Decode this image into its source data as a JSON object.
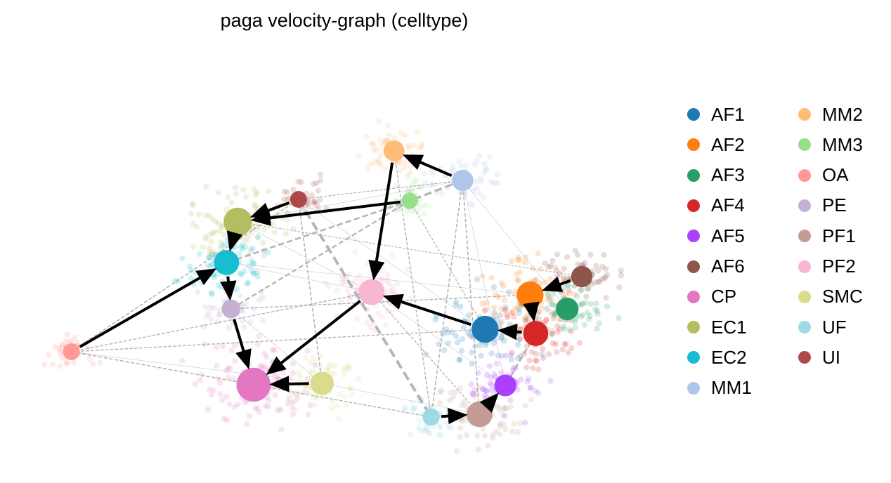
{
  "chart_data": {
    "type": "scatter",
    "title": "paga velocity-graph (celltype)",
    "xlabel": "",
    "ylabel": "",
    "axes_visible": false,
    "grid": false,
    "legend_placement": "right",
    "legend_columns": 2,
    "categories": [
      "AF1",
      "AF2",
      "AF3",
      "AF4",
      "AF5",
      "AF6",
      "CP",
      "EC1",
      "EC2",
      "MM1",
      "MM2",
      "MM3",
      "OA",
      "PE",
      "PF1",
      "PF2",
      "SMC",
      "UF",
      "UI"
    ],
    "colors": {
      "AF1": "#1f77b4",
      "AF2": "#ff7f0e",
      "AF3": "#279e68",
      "AF4": "#d62728",
      "AF5": "#aa40fc",
      "AF6": "#8c564b",
      "CP": "#e377c2",
      "EC1": "#b5bd61",
      "EC2": "#17becf",
      "MM1": "#aec7e8",
      "MM2": "#ffbb78",
      "MM3": "#98df8a",
      "OA": "#ff9896",
      "PE": "#c5b0d5",
      "PF1": "#c49c94",
      "PF2": "#f7b6d2",
      "SMC": "#dbdb8d",
      "UF": "#9edae5",
      "UI": "#ad494a"
    },
    "nodes": [
      {
        "id": "AF1",
        "x": 0.576,
        "y": -0.356,
        "weight": 0.62
      },
      {
        "id": "AF2",
        "x": 0.736,
        "y": -0.16,
        "weight": 0.62
      },
      {
        "id": "AF3",
        "x": 0.868,
        "y": -0.24,
        "weight": 0.45
      },
      {
        "id": "AF4",
        "x": 0.756,
        "y": -0.38,
        "weight": 0.55
      },
      {
        "id": "AF5",
        "x": 0.648,
        "y": -0.676,
        "weight": 0.42
      },
      {
        "id": "AF6",
        "x": 0.92,
        "y": -0.056,
        "weight": 0.4
      },
      {
        "id": "CP",
        "x": -0.248,
        "y": -0.672,
        "weight": 0.9
      },
      {
        "id": "EC1",
        "x": -0.304,
        "y": 0.256,
        "weight": 0.68
      },
      {
        "id": "EC2",
        "x": -0.344,
        "y": 0.024,
        "weight": 0.55
      },
      {
        "id": "MM1",
        "x": 0.496,
        "y": 0.492,
        "weight": 0.4
      },
      {
        "id": "MM2",
        "x": 0.252,
        "y": 0.66,
        "weight": 0.38
      },
      {
        "id": "MM3",
        "x": 0.308,
        "y": 0.376,
        "weight": 0.2
      },
      {
        "id": "OA",
        "x": -0.896,
        "y": -0.484,
        "weight": 0.22
      },
      {
        "id": "PE",
        "x": -0.328,
        "y": -0.24,
        "weight": 0.3
      },
      {
        "id": "PF1",
        "x": 0.556,
        "y": -0.84,
        "weight": 0.58
      },
      {
        "id": "PF2",
        "x": 0.172,
        "y": -0.144,
        "weight": 0.58
      },
      {
        "id": "SMC",
        "x": -0.004,
        "y": -0.664,
        "weight": 0.48
      },
      {
        "id": "UF",
        "x": 0.384,
        "y": -0.856,
        "weight": 0.24
      },
      {
        "id": "UI",
        "x": -0.088,
        "y": 0.384,
        "weight": 0.22
      }
    ],
    "arrows": [
      {
        "from": "MM1",
        "to": "MM2"
      },
      {
        "from": "MM2",
        "to": "PF2"
      },
      {
        "from": "MM3",
        "to": "EC1"
      },
      {
        "from": "UI",
        "to": "EC1"
      },
      {
        "from": "EC1",
        "to": "EC2"
      },
      {
        "from": "EC2",
        "to": "PE"
      },
      {
        "from": "PE",
        "to": "CP"
      },
      {
        "from": "OA",
        "to": "EC2"
      },
      {
        "from": "PF2",
        "to": "CP"
      },
      {
        "from": "SMC",
        "to": "CP"
      },
      {
        "from": "AF1",
        "to": "PF2"
      },
      {
        "from": "AF4",
        "to": "AF1"
      },
      {
        "from": "AF2",
        "to": "AF4"
      },
      {
        "from": "AF6",
        "to": "AF2"
      },
      {
        "from": "UF",
        "to": "PF1"
      },
      {
        "from": "PF1",
        "to": "AF5"
      }
    ],
    "dashed_edges": [
      {
        "from": "UI",
        "to": "UF",
        "strength": 1.0
      },
      {
        "from": "MM1",
        "to": "MM3",
        "strength": 0.8
      },
      {
        "from": "MM3",
        "to": "EC2",
        "strength": 0.6
      },
      {
        "from": "MM3",
        "to": "PE",
        "strength": 0.5
      },
      {
        "from": "AF4",
        "to": "AF5",
        "strength": 0.6
      },
      {
        "from": "UI",
        "to": "SMC",
        "strength": 0.3
      },
      {
        "from": "MM1",
        "to": "UF",
        "strength": 0.3
      },
      {
        "from": "MM1",
        "to": "PF1",
        "strength": 0.3
      },
      {
        "from": "OA",
        "to": "UI",
        "strength": 0.3
      },
      {
        "from": "OA",
        "to": "CP",
        "strength": 0.3
      },
      {
        "from": "OA",
        "to": "AF1",
        "strength": 0.25
      },
      {
        "from": "OA",
        "to": "PF2",
        "strength": 0.25
      },
      {
        "from": "PE",
        "to": "AF2",
        "strength": 0.25
      },
      {
        "from": "MM2",
        "to": "UF",
        "strength": 0.25
      },
      {
        "from": "CP",
        "to": "UF",
        "strength": 0.25
      },
      {
        "from": "MM3",
        "to": "AF1",
        "strength": 0.2
      },
      {
        "from": "UI",
        "to": "MM1",
        "strength": 0.2
      },
      {
        "from": "PF2",
        "to": "PF1",
        "strength": 0.2
      },
      {
        "from": "EC1",
        "to": "AF6",
        "strength": 0.15
      }
    ],
    "thin_edges": [
      {
        "from": "OA",
        "to": "SMC"
      },
      {
        "from": "EC2",
        "to": "PF2"
      },
      {
        "from": "EC1",
        "to": "PF2"
      },
      {
        "from": "MM1",
        "to": "AF3"
      },
      {
        "from": "MM1",
        "to": "AF5"
      },
      {
        "from": "PF2",
        "to": "AF5"
      },
      {
        "from": "PE",
        "to": "SMC"
      },
      {
        "from": "UI",
        "to": "AF1"
      },
      {
        "from": "EC2",
        "to": "AF2"
      },
      {
        "from": "SMC",
        "to": "PF1"
      },
      {
        "from": "EC1",
        "to": "MM1"
      }
    ]
  }
}
